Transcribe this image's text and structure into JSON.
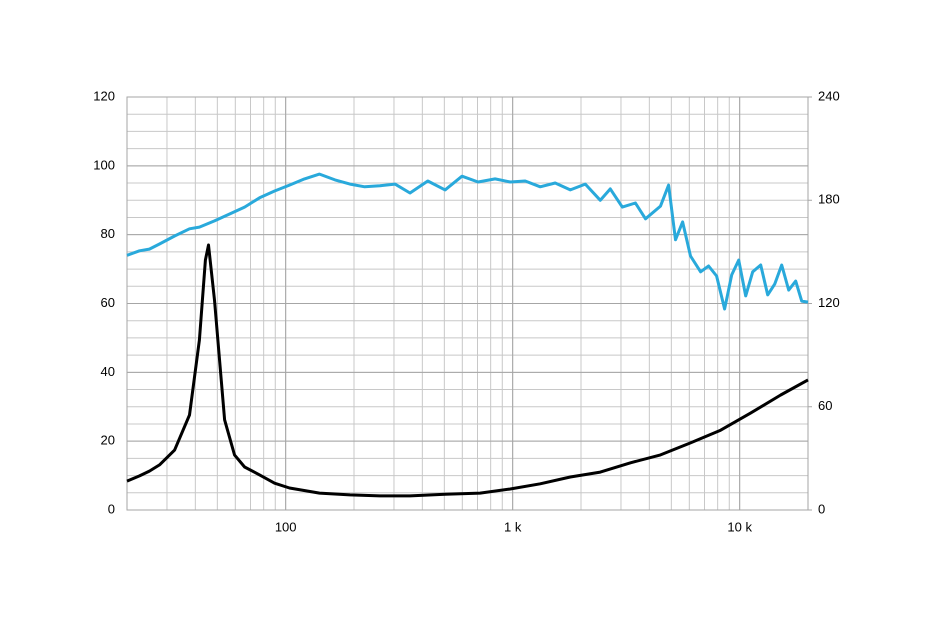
{
  "chart_data": {
    "type": "line",
    "xscale": "log",
    "xlim": [
      20,
      20000
    ],
    "xticks": [
      100,
      {
        "value": 1000,
        "label": "1 k"
      },
      {
        "value": 10000,
        "label": "10 k"
      }
    ],
    "ylim": [
      0,
      120
    ],
    "yticks": [
      0,
      20,
      40,
      60,
      80,
      100,
      120
    ],
    "y2lim": [
      0,
      240
    ],
    "y2ticks": [
      0,
      60,
      120,
      180,
      240
    ],
    "grid": true,
    "series": [
      {
        "color": "#29a9db",
        "x": [
          20,
          22.7,
          25.1,
          27.8,
          32.4,
          37.7,
          41.7,
          48.6,
          56.6,
          65.9,
          76.8,
          89.4,
          104,
          121,
          141,
          165,
          192,
          223,
          260,
          303,
          353,
          423,
          504,
          598,
          704,
          837,
          975,
          1135,
          1322,
          1540,
          1794,
          2089,
          2433,
          2692,
          3041,
          3473,
          3846,
          4480,
          4862,
          5217,
          5603,
          6075,
          6728,
          7296,
          7913,
          8585,
          9224,
          9905,
          10636,
          11413,
          12379,
          13290,
          14277,
          15311,
          16440,
          17660,
          18770,
          20000
        ],
        "values": [
          74,
          75.3,
          75.8,
          77.3,
          79.6,
          81.7,
          82.2,
          84,
          86,
          88,
          90.7,
          92.7,
          94.4,
          96.2,
          97.6,
          95.9,
          94.7,
          93.9,
          94.2,
          94.7,
          92.1,
          95.6,
          93,
          97,
          95.3,
          96.2,
          95.3,
          95.6,
          93.9,
          95,
          93,
          94.7,
          90,
          93.3,
          88,
          89.2,
          84.6,
          88.3,
          94.4,
          78.5,
          83.7,
          73.8,
          69.2,
          70.9,
          68,
          58.4,
          68.3,
          72.6,
          62.2,
          69.2,
          71.2,
          62.5,
          65.7,
          71.2,
          63.9,
          66.5,
          60.7,
          60.4
        ]
      },
      {
        "color": "#000000",
        "x": [
          20,
          22.7,
          25.1,
          27.8,
          32.4,
          37.7,
          41.7,
          44.3,
          45.7,
          48.6,
          53.8,
          59.5,
          65.9,
          76.8,
          89.4,
          104,
          141,
          192,
          260,
          353,
          504,
          719,
          975,
          1322,
          1794,
          2433,
          3303,
          4480,
          6075,
          8244,
          11190,
          15170,
          20000
        ],
        "values": [
          8.4,
          9.9,
          11.3,
          13.1,
          17.4,
          27.6,
          49.4,
          72.6,
          77,
          61,
          26.2,
          16,
          12.5,
          10.2,
          7.8,
          6.4,
          4.9,
          4.4,
          4.1,
          4.1,
          4.6,
          4.9,
          6.1,
          7.6,
          9.6,
          11,
          13.7,
          16,
          19.5,
          23.2,
          28.2,
          33.4,
          37.8
        ]
      }
    ]
  }
}
